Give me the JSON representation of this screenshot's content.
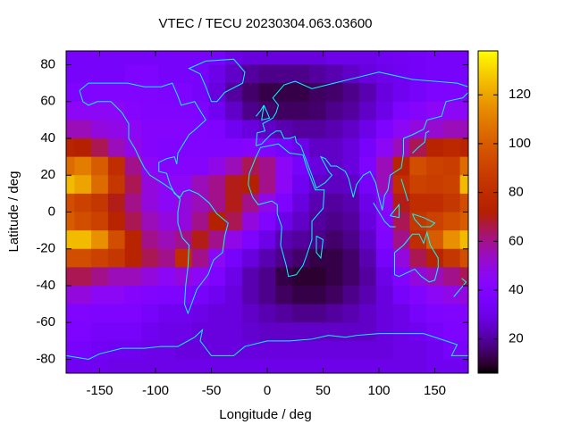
{
  "chart_data": {
    "type": "heatmap",
    "title": "VTEC / TECU 20230304.063.03600",
    "x_label": "Longitude / deg",
    "y_label": "Latitude / deg",
    "x": [
      -180,
      -165,
      -150,
      -135,
      -120,
      -105,
      -90,
      -75,
      -60,
      -45,
      -30,
      -15,
      0,
      15,
      30,
      45,
      60,
      75,
      90,
      105,
      120,
      135,
      150,
      165,
      180
    ],
    "y": [
      85,
      75,
      65,
      55,
      45,
      35,
      25,
      15,
      5,
      -5,
      -15,
      -25,
      -35,
      -45,
      -55,
      -65,
      -75,
      -85
    ],
    "values": [
      [
        35,
        35,
        35,
        35,
        35,
        35,
        35,
        35,
        35,
        35,
        30,
        28,
        28,
        28,
        28,
        28,
        30,
        30,
        30,
        32,
        33,
        34,
        35,
        35,
        35
      ],
      [
        35,
        35,
        35,
        35,
        38,
        38,
        35,
        35,
        35,
        30,
        25,
        20,
        18,
        18,
        18,
        20,
        22,
        25,
        28,
        30,
        32,
        34,
        35,
        35,
        35
      ],
      [
        38,
        38,
        40,
        40,
        40,
        40,
        38,
        38,
        35,
        28,
        20,
        15,
        12,
        12,
        12,
        14,
        15,
        18,
        22,
        28,
        32,
        35,
        38,
        38,
        38
      ],
      [
        45,
        45,
        45,
        45,
        42,
        40,
        40,
        40,
        38,
        32,
        25,
        18,
        15,
        14,
        14,
        15,
        18,
        20,
        25,
        30,
        38,
        42,
        45,
        45,
        45
      ],
      [
        55,
        55,
        50,
        48,
        45,
        42,
        42,
        42,
        40,
        38,
        32,
        28,
        25,
        22,
        20,
        20,
        22,
        25,
        30,
        38,
        45,
        50,
        52,
        55,
        55
      ],
      [
        75,
        72,
        65,
        55,
        48,
        42,
        40,
        40,
        40,
        40,
        40,
        42,
        40,
        35,
        30,
        25,
        25,
        28,
        35,
        45,
        55,
        65,
        75,
        78,
        75
      ],
      [
        105,
        110,
        100,
        80,
        60,
        45,
        42,
        42,
        42,
        48,
        55,
        65,
        60,
        45,
        35,
        28,
        25,
        28,
        38,
        55,
        75,
        95,
        90,
        88,
        105
      ],
      [
        125,
        120,
        105,
        85,
        65,
        50,
        45,
        45,
        55,
        60,
        70,
        72,
        60,
        45,
        32,
        25,
        24,
        25,
        35,
        55,
        80,
        90,
        88,
        90,
        125
      ],
      [
        95,
        90,
        85,
        70,
        60,
        50,
        45,
        50,
        55,
        60,
        70,
        60,
        48,
        38,
        28,
        22,
        20,
        22,
        30,
        45,
        70,
        80,
        80,
        85,
        95
      ],
      [
        100,
        95,
        90,
        75,
        65,
        55,
        50,
        50,
        60,
        72,
        65,
        50,
        40,
        30,
        25,
        20,
        18,
        20,
        28,
        42,
        65,
        85,
        90,
        95,
        100
      ],
      [
        125,
        125,
        115,
        95,
        75,
        60,
        55,
        60,
        70,
        60,
        48,
        38,
        30,
        22,
        20,
        18,
        15,
        18,
        25,
        40,
        60,
        80,
        100,
        115,
        125
      ],
      [
        95,
        95,
        90,
        85,
        75,
        65,
        60,
        80,
        60,
        45,
        35,
        28,
        22,
        18,
        15,
        12,
        12,
        15,
        22,
        35,
        50,
        65,
        75,
        85,
        95
      ],
      [
        65,
        65,
        60,
        55,
        55,
        50,
        45,
        50,
        45,
        38,
        30,
        22,
        18,
        12,
        10,
        10,
        12,
        15,
        20,
        30,
        40,
        50,
        55,
        60,
        65
      ],
      [
        50,
        50,
        45,
        45,
        42,
        40,
        38,
        38,
        35,
        32,
        28,
        22,
        18,
        14,
        12,
        12,
        14,
        18,
        22,
        28,
        35,
        40,
        45,
        48,
        50
      ],
      [
        40,
        40,
        38,
        38,
        38,
        35,
        32,
        32,
        30,
        28,
        28,
        25,
        22,
        20,
        18,
        18,
        20,
        22,
        25,
        28,
        30,
        35,
        38,
        40,
        40
      ],
      [
        38,
        38,
        35,
        35,
        35,
        32,
        30,
        30,
        28,
        28,
        28,
        26,
        25,
        25,
        25,
        25,
        25,
        25,
        25,
        28,
        30,
        32,
        35,
        38,
        38
      ],
      [
        35,
        35,
        33,
        32,
        32,
        30,
        30,
        28,
        28,
        28,
        28,
        28,
        28,
        28,
        28,
        28,
        28,
        28,
        28,
        28,
        30,
        30,
        32,
        35,
        35
      ],
      [
        32,
        32,
        32,
        30,
        30,
        30,
        30,
        30,
        30,
        30,
        30,
        30,
        30,
        30,
        30,
        30,
        30,
        30,
        30,
        30,
        30,
        30,
        32,
        32,
        32
      ]
    ],
    "xlim": [
      -180,
      180
    ],
    "ylim": [
      -87.5,
      87.5
    ],
    "xticks": [
      -150,
      -100,
      -50,
      0,
      50,
      100,
      150
    ],
    "yticks": [
      -80,
      -60,
      -40,
      -20,
      0,
      20,
      40,
      60,
      80
    ],
    "zlim": [
      6,
      138
    ],
    "zticks": [
      20,
      40,
      60,
      80,
      100,
      120
    ],
    "colormap": "gnuplot",
    "coastline_color": "#00ffff"
  }
}
